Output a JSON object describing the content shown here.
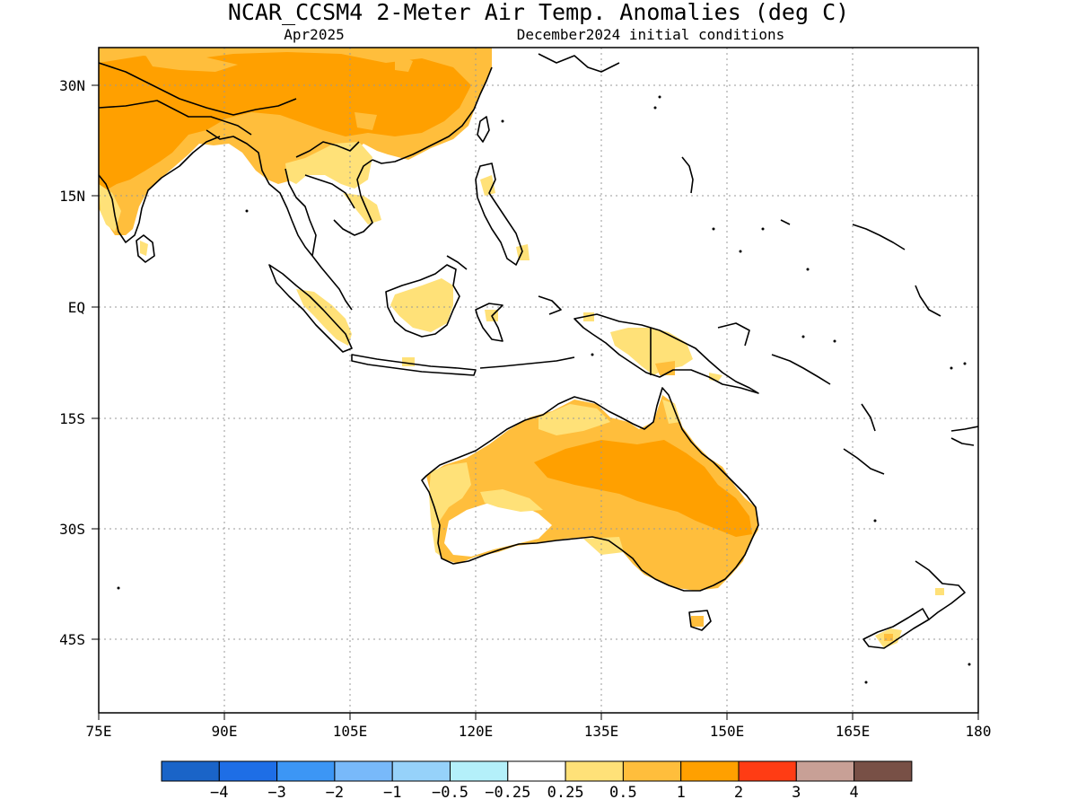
{
  "header": {
    "title": "NCAR_CCSM4 2-Meter Air Temp. Anomalies (deg C)",
    "valid_month": "Apr2025",
    "init": "December2024 initial conditions"
  },
  "axes": {
    "lat_labels": [
      "30N",
      "15N",
      "EQ",
      "15S",
      "30S",
      "45S"
    ],
    "lon_labels": [
      "75E",
      "90E",
      "105E",
      "120E",
      "135E",
      "150E",
      "165E",
      "180"
    ]
  },
  "legend": {
    "colors": [
      "#1a64c8",
      "#1e6ee6",
      "#3c96f5",
      "#78b9fa",
      "#96d2fa",
      "#b4f0fa",
      "#ffffff",
      "#ffe178",
      "#ffbe3c",
      "#ffa000",
      "#ff3c14",
      "#c8a096",
      "#785046"
    ],
    "labels": [
      "-4",
      "-3",
      "-2",
      "-1",
      "-0.5",
      "-0.25",
      "0.25",
      "0.5",
      "1",
      "2",
      "3",
      "4"
    ]
  },
  "map_data": {
    "extent": {
      "lon": [
        75,
        180
      ],
      "lat": [
        -51,
        35
      ]
    },
    "gridlines": "dotted",
    "regions": [
      {
        "name": "asia-mainland-anomaly",
        "color": "#ffbe3c"
      },
      {
        "name": "tibet-china-anomaly",
        "color": "#ffa000"
      },
      {
        "name": "indochina-anomaly",
        "color": "#ffe178"
      },
      {
        "name": "sumatra-anomaly",
        "color": "#ffe178"
      },
      {
        "name": "borneo-anomaly",
        "color": "#ffe178"
      },
      {
        "name": "new-guinea-anomaly",
        "color": "#ffe178"
      },
      {
        "name": "australia-anomaly",
        "color": "#ffbe3c"
      },
      {
        "name": "australia-interior-anomaly",
        "color": "#ffa000"
      },
      {
        "name": "new-zealand-anomaly",
        "color": "#ffe178"
      }
    ]
  }
}
